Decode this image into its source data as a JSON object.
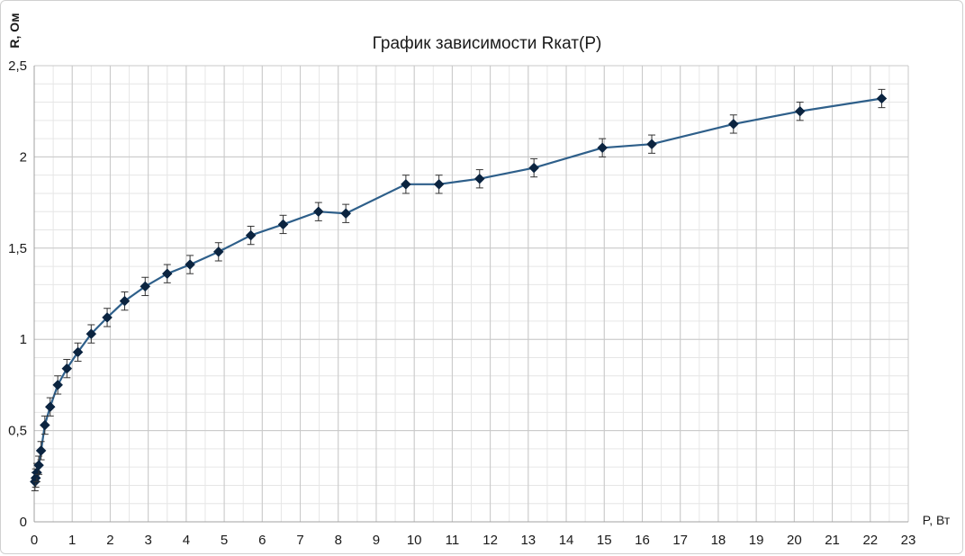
{
  "chart_data": {
    "type": "line",
    "title": "График зависимости Rкат(P)",
    "xlabel": "P, Вт",
    "ylabel": "R, Ом",
    "xlim": [
      0,
      23
    ],
    "ylim": [
      0,
      2.5
    ],
    "x_ticks": [
      "0",
      "1",
      "2",
      "3",
      "4",
      "5",
      "6",
      "7",
      "8",
      "9",
      "10",
      "11",
      "12",
      "13",
      "14",
      "15",
      "16",
      "17",
      "18",
      "19",
      "20",
      "21",
      "22",
      "23"
    ],
    "y_ticks": [
      "0",
      "0,5",
      "1",
      "1,5",
      "2",
      "2,5"
    ],
    "x_minor_step": 0.5,
    "y_minor_step": 0.1,
    "grid": true,
    "error_bar": 0.05,
    "series": [
      {
        "color": "#2e5f8a",
        "marker_color": "#0b2440",
        "x": [
          0.02,
          0.04,
          0.07,
          0.12,
          0.18,
          0.28,
          0.42,
          0.62,
          0.86,
          1.15,
          1.5,
          1.92,
          2.38,
          2.92,
          3.5,
          4.1,
          4.85,
          5.7,
          6.55,
          7.48,
          8.2,
          9.78,
          10.65,
          11.72,
          13.15,
          14.95,
          16.25,
          18.4,
          20.15,
          22.3
        ],
        "y": [
          0.22,
          0.24,
          0.27,
          0.31,
          0.39,
          0.53,
          0.63,
          0.75,
          0.84,
          0.93,
          1.03,
          1.12,
          1.21,
          1.29,
          1.36,
          1.41,
          1.48,
          1.57,
          1.63,
          1.7,
          1.69,
          1.85,
          1.85,
          1.88,
          1.94,
          2.05,
          2.07,
          2.18,
          2.25,
          2.32
        ]
      }
    ]
  }
}
